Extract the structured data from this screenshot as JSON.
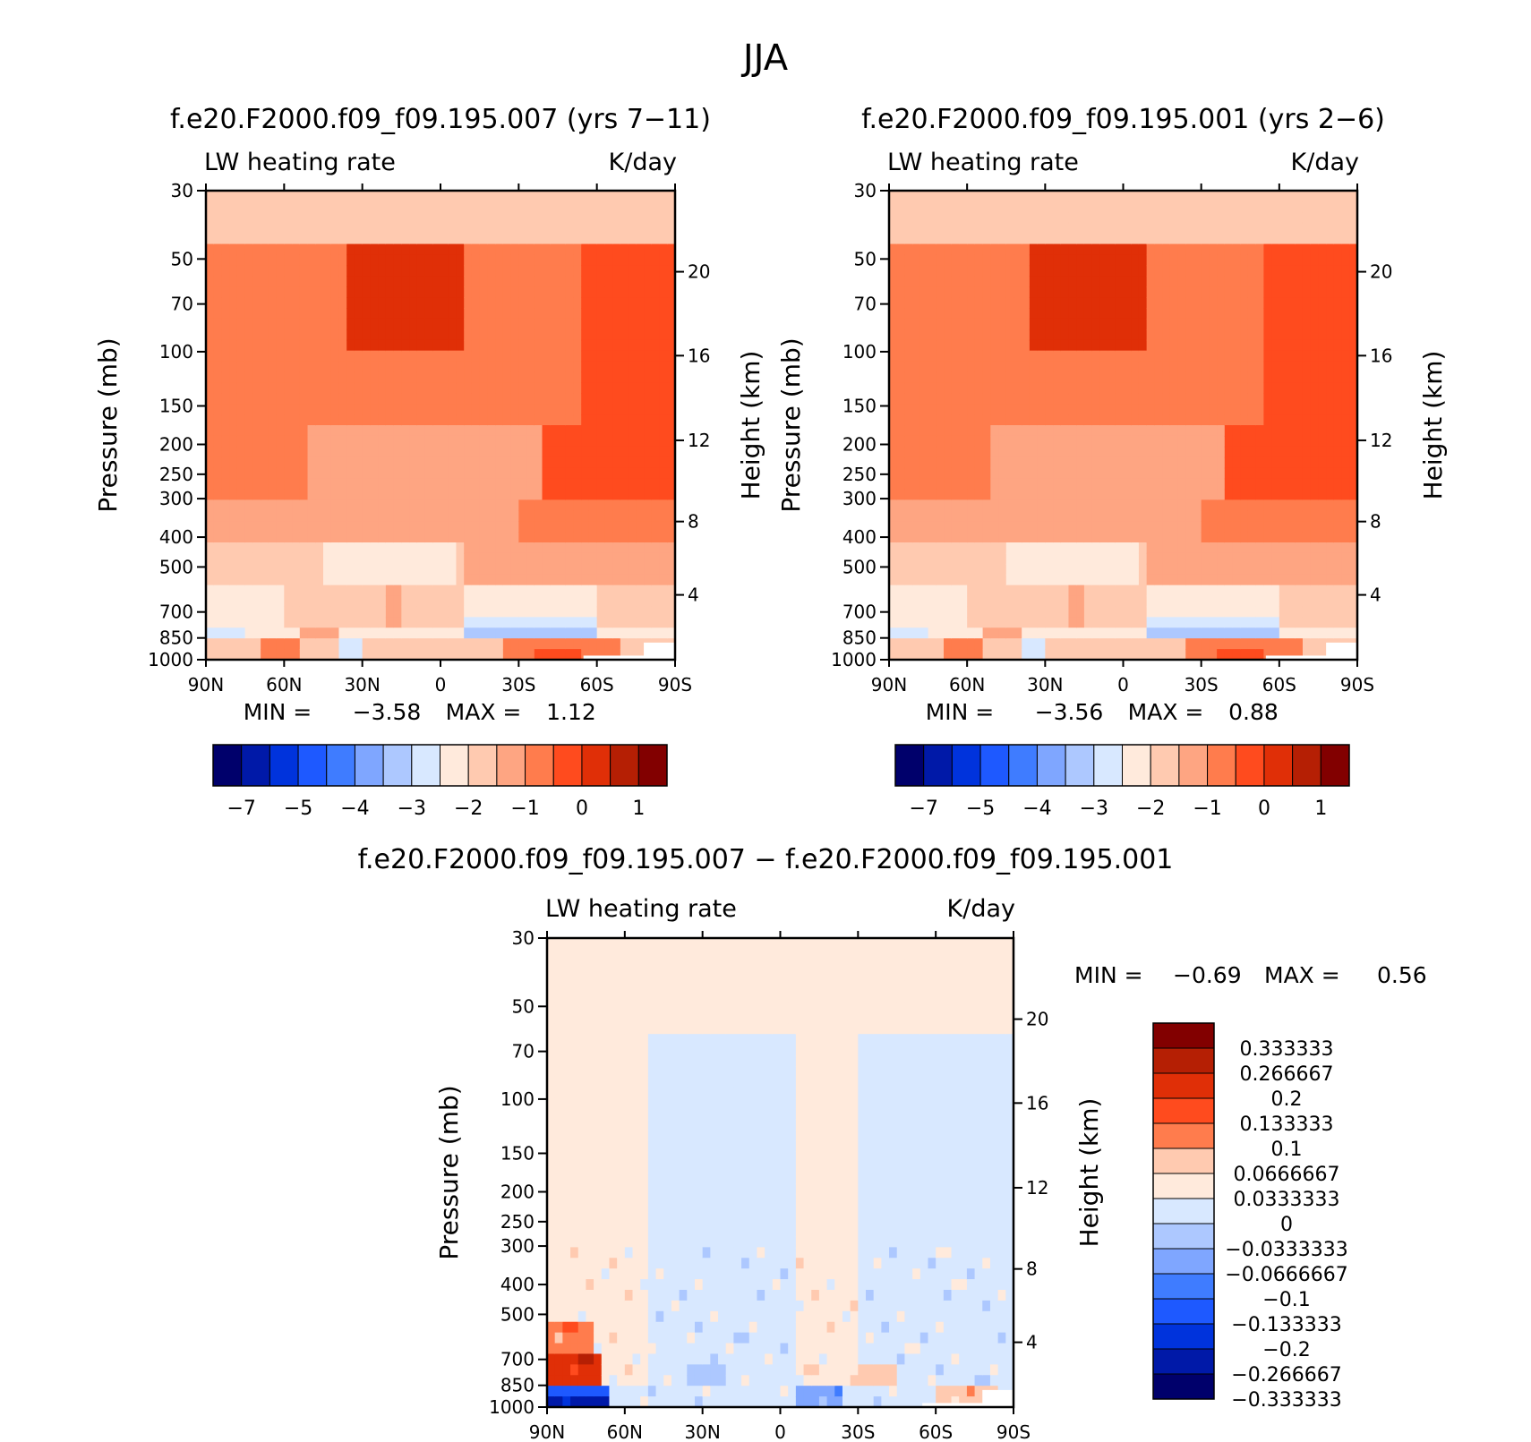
{
  "figure": {
    "season": "JJA",
    "diff_title": "f.e20.F2000.f09_f09.195.007 − f.e20.F2000.f09_f09.195.001"
  },
  "common": {
    "var_label": "LW heating rate",
    "units": "K/day",
    "ylabel_left": "Pressure (mb)",
    "ylabel_right": "Height (km)",
    "min_label": "MIN =",
    "max_label": "MAX ="
  },
  "colors": {
    "abs_fills": [
      "#00006b",
      "#0019a8",
      "#0033dc",
      "#1e59ff",
      "#3f7cff",
      "#7fa6ff",
      "#adc8ff",
      "#d8e8ff",
      "#ffeadc",
      "#ffcab0",
      "#fea582",
      "#ff7c4d",
      "#ff4b1e",
      "#e02f07",
      "#b51f04",
      "#820000"
    ],
    "diff_fills": [
      "#00006b",
      "#0019a8",
      "#0033dc",
      "#1e59ff",
      "#3f7cff",
      "#7fa6ff",
      "#adc8ff",
      "#d8e8ff",
      "#ffeadc",
      "#ffcab0",
      "#ff7c4d",
      "#ff4b1e",
      "#e02f07",
      "#b51f04",
      "#820000"
    ]
  },
  "chart_data": [
    {
      "type": "heatmap",
      "title": "f.e20.F2000.f09_f09.195.007 (yrs 7−11)",
      "field": "LW heating rate",
      "units": "K/day",
      "x_ticks": [
        "90N",
        "60N",
        "30N",
        "0",
        "30S",
        "60S",
        "90S"
      ],
      "y_ticks": [
        30,
        50,
        70,
        100,
        150,
        200,
        250,
        300,
        400,
        500,
        700,
        850,
        1000
      ],
      "y_tick_labels": [
        "30",
        "50",
        "70",
        "100",
        "150",
        "200",
        "250",
        "300",
        "400",
        "500",
        "700",
        "850",
        "1000"
      ],
      "height_ticks": [
        "20",
        "16",
        "12",
        "8",
        "4"
      ],
      "ylim_mb": [
        30,
        1000
      ],
      "min": "−3.58",
      "max": "1.12",
      "colorbar_labels": [
        "−7",
        "−5",
        "−4",
        "−3",
        "−2",
        "−1",
        "0",
        "1"
      ],
      "grid": "off"
    },
    {
      "type": "heatmap",
      "title": "f.e20.F2000.f09_f09.195.001 (yrs 2−6)",
      "field": "LW heating rate",
      "units": "K/day",
      "x_ticks": [
        "90N",
        "60N",
        "30N",
        "0",
        "30S",
        "60S",
        "90S"
      ],
      "y_ticks": [
        30,
        50,
        70,
        100,
        150,
        200,
        250,
        300,
        400,
        500,
        700,
        850,
        1000
      ],
      "y_tick_labels": [
        "30",
        "50",
        "70",
        "100",
        "150",
        "200",
        "250",
        "300",
        "400",
        "500",
        "700",
        "850",
        "1000"
      ],
      "height_ticks": [
        "20",
        "16",
        "12",
        "8",
        "4"
      ],
      "ylim_mb": [
        30,
        1000
      ],
      "min": "−3.56",
      "max": "0.88",
      "colorbar_labels": [
        "−7",
        "−5",
        "−4",
        "−3",
        "−2",
        "−1",
        "0",
        "1"
      ],
      "grid": "off"
    },
    {
      "type": "heatmap",
      "title": "f.e20.F2000.f09_f09.195.007 − f.e20.F2000.f09_f09.195.001",
      "field": "LW heating rate",
      "units": "K/day",
      "x_ticks": [
        "90N",
        "60N",
        "30N",
        "0",
        "30S",
        "60S",
        "90S"
      ],
      "y_ticks": [
        30,
        50,
        70,
        100,
        150,
        200,
        250,
        300,
        400,
        500,
        700,
        850,
        1000
      ],
      "y_tick_labels": [
        "30",
        "50",
        "70",
        "100",
        "150",
        "200",
        "250",
        "300",
        "400",
        "500",
        "700",
        "850",
        "1000"
      ],
      "height_ticks": [
        "20",
        "16",
        "12",
        "8",
        "4"
      ],
      "ylim_mb": [
        30,
        1000
      ],
      "min": "−0.69",
      "max": "0.56",
      "colorbar_labels": [
        "0.333333",
        "0.266667",
        "0.2",
        "0.133333",
        "0.1",
        "0.0666667",
        "0.0333333",
        "0",
        "−0.0333333",
        "−0.0666667",
        "−0.1",
        "−0.133333",
        "−0.2",
        "−0.266667",
        "−0.333333"
      ],
      "grid": "off"
    }
  ]
}
